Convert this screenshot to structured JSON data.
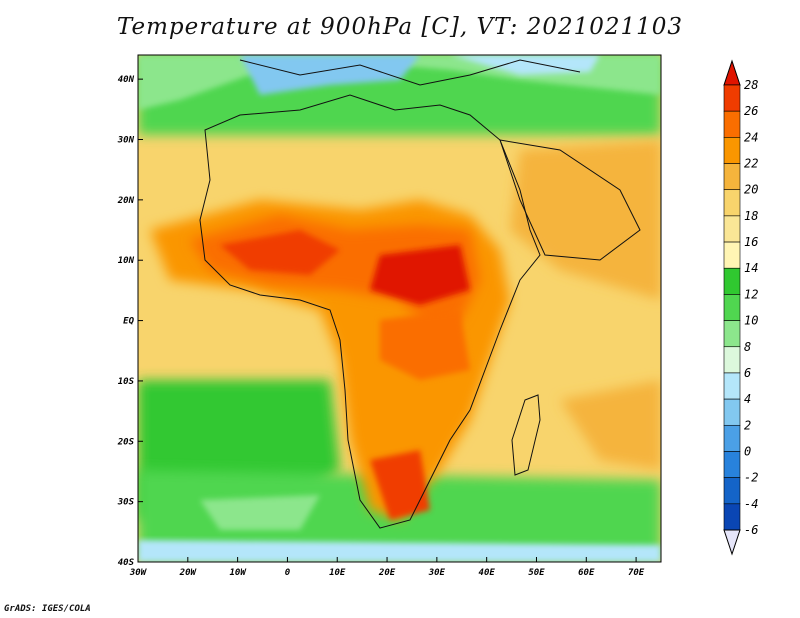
{
  "title": "Temperature at 900hPa [C], VT: 2021021103",
  "credit": "GrADS: IGES/COLA",
  "map": {
    "lon_ticks": [
      "30W",
      "20W",
      "10W",
      "0",
      "10E",
      "20E",
      "30E",
      "40E",
      "50E",
      "60E",
      "70E"
    ],
    "lat_ticks": [
      "40N",
      "30N",
      "20N",
      "10N",
      "EQ",
      "10S",
      "20S",
      "30S",
      "40S"
    ],
    "lon_range": [
      -30,
      75
    ],
    "lat_range": [
      -40,
      44
    ]
  },
  "colorbar": {
    "labels": [
      "28",
      "26",
      "24",
      "22",
      "20",
      "18",
      "16",
      "14",
      "12",
      "10",
      "8",
      "6",
      "4",
      "2",
      "0",
      "-2",
      "-4",
      "-6"
    ],
    "colors": [
      "#e01400",
      "#f03c00",
      "#fa6e00",
      "#fa9600",
      "#f5b43c",
      "#f8d46c",
      "#fae696",
      "#fff5b4",
      "#30c830",
      "#50d650",
      "#8ce68c",
      "#dcf8dc",
      "#b4e6fa",
      "#82c8f0",
      "#4ba0e6",
      "#2882dc",
      "#1464c8",
      "#0a46b4",
      "#000a78",
      "#e6e6fa"
    ]
  }
}
